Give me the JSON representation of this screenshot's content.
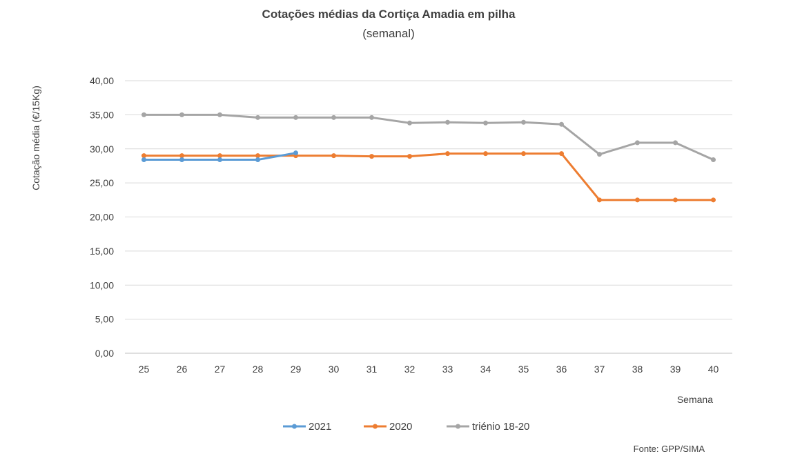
{
  "chart_data": {
    "type": "line",
    "title": "Cotações médias da Cortiça Amadia em pilha",
    "subtitle": "(semanal)",
    "xlabel": "Semana",
    "ylabel": "Cotação média (€/15Kg)",
    "categories": [
      "25",
      "26",
      "27",
      "28",
      "29",
      "30",
      "31",
      "32",
      "33",
      "34",
      "35",
      "36",
      "37",
      "38",
      "39",
      "40"
    ],
    "ylim": [
      0,
      40
    ],
    "yticks": [
      "0,00",
      "5,00",
      "10,00",
      "15,00",
      "20,00",
      "25,00",
      "30,00",
      "35,00",
      "40,00"
    ],
    "grid": true,
    "legend_position": "bottom",
    "series": [
      {
        "name": "2021",
        "color": "#5b9bd5",
        "values": [
          28.4,
          28.4,
          28.4,
          28.4,
          29.4,
          null,
          null,
          null,
          null,
          null,
          null,
          null,
          null,
          null,
          null,
          null
        ]
      },
      {
        "name": "2020",
        "color": "#ed7d31",
        "values": [
          29.0,
          29.0,
          29.0,
          29.0,
          29.0,
          29.0,
          28.9,
          28.9,
          29.3,
          29.3,
          29.3,
          29.3,
          22.5,
          22.5,
          22.5,
          22.5
        ]
      },
      {
        "name": "triénio 18-20",
        "color": "#a5a5a5",
        "values": [
          35.0,
          35.0,
          35.0,
          34.6,
          34.6,
          34.6,
          34.6,
          33.8,
          33.9,
          33.8,
          33.9,
          33.6,
          29.2,
          30.9,
          30.9,
          28.4
        ]
      }
    ],
    "source": "Fonte: GPP/SIMA"
  }
}
